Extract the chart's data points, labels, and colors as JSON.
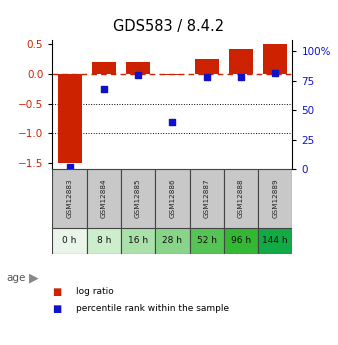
{
  "title": "GDS583 / 8.4.2",
  "samples": [
    "GSM12883",
    "GSM12884",
    "GSM12885",
    "GSM12886",
    "GSM12887",
    "GSM12888",
    "GSM12889"
  ],
  "ages": [
    "0 h",
    "8 h",
    "16 h",
    "28 h",
    "52 h",
    "96 h",
    "144 h"
  ],
  "log_ratio": [
    -1.5,
    0.19,
    0.2,
    -0.02,
    0.25,
    0.42,
    0.5
  ],
  "percentile_rank": [
    2.0,
    68.0,
    80.0,
    40.0,
    78.0,
    78.0,
    82.0
  ],
  "bar_color": "#cc2200",
  "dot_color": "#1111cc",
  "ylim_left": [
    -1.6,
    0.57
  ],
  "ylim_right": [
    0,
    110
  ],
  "yticks_left": [
    0.5,
    0.0,
    -0.5,
    -1.0,
    -1.5
  ],
  "yticks_right": [
    0,
    25,
    50,
    75,
    100
  ],
  "ytick_labels_right": [
    "0",
    "25",
    "50",
    "75",
    "100%"
  ],
  "hline_zero_color": "#cc2200",
  "hline_dotted_vals": [
    -0.5,
    -1.0
  ],
  "age_bg_colors": [
    "#e8f5e8",
    "#cceecc",
    "#aae0aa",
    "#88d488",
    "#55c455",
    "#33b833",
    "#11aa44"
  ],
  "gsm_bg_color": "#c8c8c8"
}
